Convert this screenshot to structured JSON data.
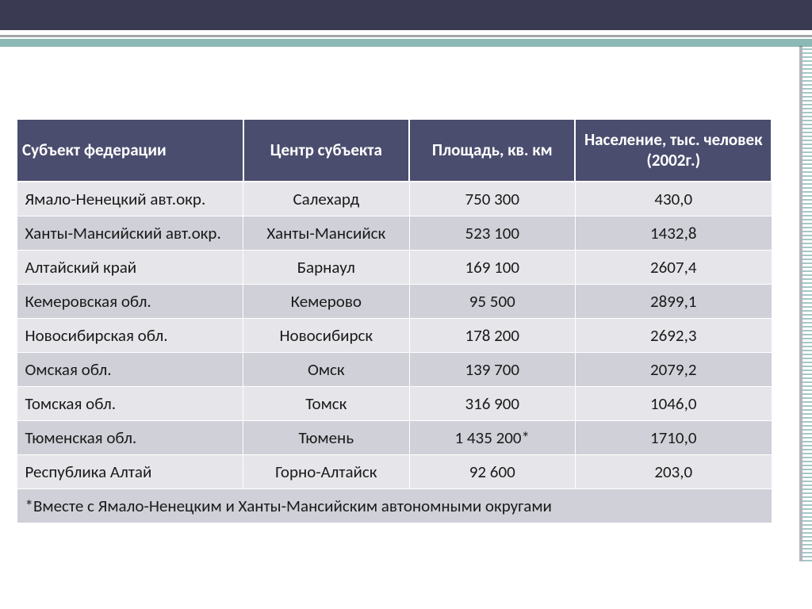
{
  "colors": {
    "header_bg": "#4a4d6e",
    "header_text": "#ffffff",
    "row_odd": "#e6e6ea",
    "row_even": "#cfd0d8",
    "top_band": "#3a3b53",
    "teal": "#5b9a96"
  },
  "table": {
    "columns": {
      "subject": "Субъект федерации",
      "center": "Центр субъекта",
      "area": "Площадь, кв. км",
      "population": "Население, тыс. человек (2002г.)"
    },
    "rows": [
      {
        "subject": "Ямало-Ненецкий авт.окр.",
        "center": "Салехард",
        "area": "750 300",
        "population": "430,0"
      },
      {
        "subject": "Ханты-Мансийский авт.окр.",
        "center": "Ханты-Мансийск",
        "area": "523 100",
        "population": "1432,8"
      },
      {
        "subject": "Алтайский край",
        "center": "Барнаул",
        "area": "169 100",
        "population": "2607,4"
      },
      {
        "subject": "Кемеровская обл.",
        "center": "Кемерово",
        "area": "95 500",
        "population": "2899,1"
      },
      {
        "subject": "Новосибирская обл.",
        "center": "Новосибирск",
        "area": "178 200",
        "population": "2692,3"
      },
      {
        "subject": "Омская обл.",
        "center": "Омск",
        "area": "139 700",
        "population": "2079,2"
      },
      {
        "subject": "Томская обл.",
        "center": "Томск",
        "area": "316 900",
        "population": "1046,0"
      },
      {
        "subject": "Тюменская обл.",
        "center": "Тюмень",
        "area": "1 435 200*",
        "population": "1710,0"
      },
      {
        "subject": "Республика Алтай",
        "center": "Горно-Алтайск",
        "area": "92 600",
        "population": "203,0"
      }
    ],
    "footnote": "*Вместе с Ямало-Ненецким и Ханты-Мансийским автономными округами"
  }
}
